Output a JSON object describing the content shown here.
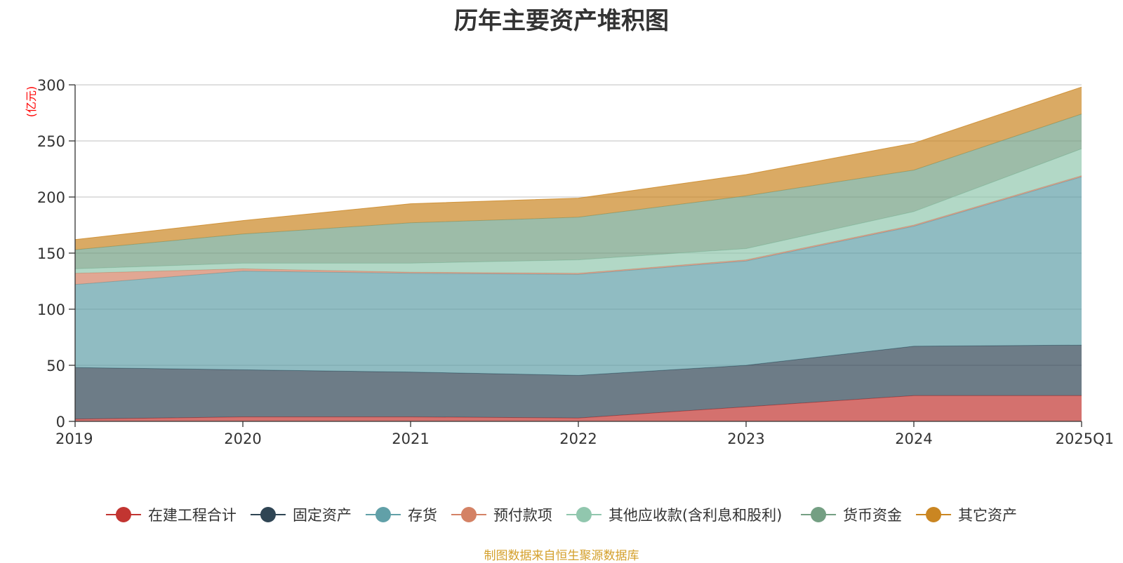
{
  "chart_data": {
    "type": "area",
    "stacked": true,
    "title": "历年主要资产堆积图",
    "unit_label": "(亿元)",
    "categories": [
      "2019",
      "2020",
      "2021",
      "2022",
      "2023",
      "2024",
      "2025Q1"
    ],
    "ylim": [
      0,
      300
    ],
    "yticks": [
      0,
      50,
      100,
      150,
      200,
      250,
      300
    ],
    "grid": true,
    "legend_position": "bottom",
    "series": [
      {
        "name": "在建工程合计",
        "color": "#c23531",
        "values": [
          2,
          4,
          4,
          3,
          13,
          23,
          23
        ]
      },
      {
        "name": "固定资产",
        "color": "#2f4554",
        "values": [
          46,
          42,
          40,
          38,
          37,
          44,
          45
        ]
      },
      {
        "name": "存货",
        "color": "#61a0a8",
        "values": [
          74,
          88,
          88,
          90,
          93,
          107,
          150
        ]
      },
      {
        "name": "预付款项",
        "color": "#d48265",
        "values": [
          10,
          2,
          1,
          1,
          1,
          1,
          1
        ]
      },
      {
        "name": "其他应收款(含利息和股利)",
        "color": "#91c7ae",
        "values": [
          4,
          5,
          8,
          12,
          10,
          12,
          24
        ]
      },
      {
        "name": "货币资金",
        "color": "#749f83",
        "values": [
          17,
          26,
          36,
          38,
          47,
          37,
          31
        ]
      },
      {
        "name": "其它资产",
        "color": "#ca8622",
        "values": [
          9,
          12,
          17,
          17,
          19,
          24,
          24
        ]
      }
    ]
  },
  "source_note": "制图数据来自恒生聚源数据库"
}
